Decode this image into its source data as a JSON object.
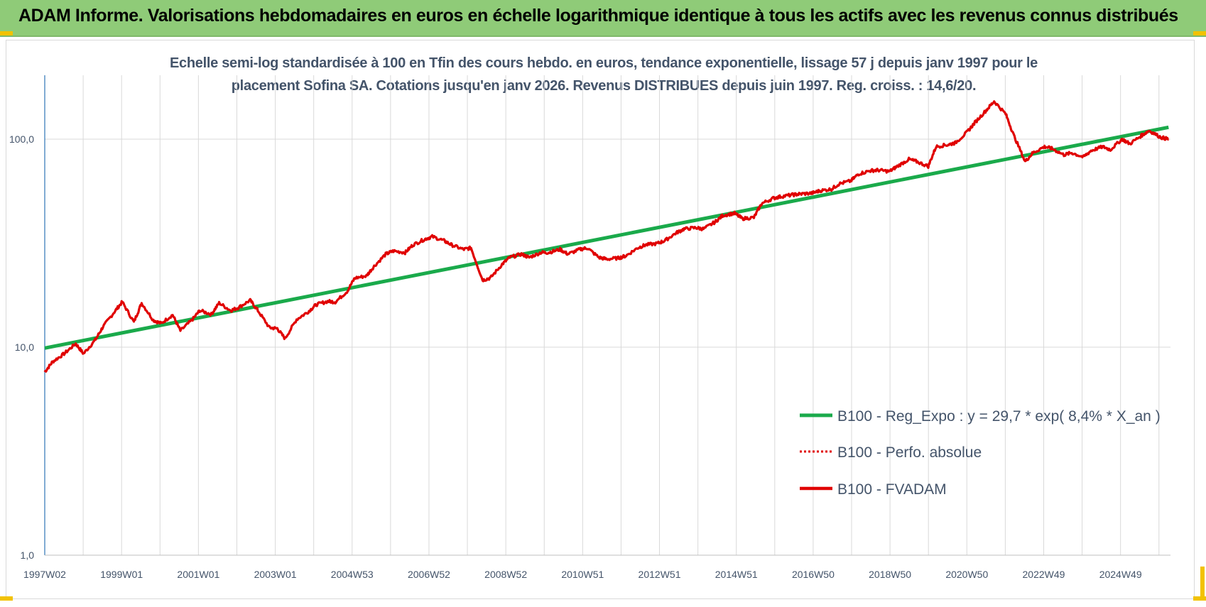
{
  "header": {
    "title": "ADAM Informe. Valorisations hebdomadaires en euros en échelle logarithmique identique à tous les actifs avec les revenus connus distribués"
  },
  "chart_data": {
    "type": "line",
    "title_line1": "Echelle semi-log standardisée à 100 en Tfin des cours hebdo. en euros, tendance exponentielle, lissage 57 j depuis janv 1997 pour le",
    "title_line2": "placement Sofina SA. Cotations jusqu'en janv 2026. Revenus DISTRIBUES depuis juin 1997. Reg. croiss. : 14,6/20.",
    "y_scale": "log",
    "ylim": [
      1,
      180
    ],
    "y_ticks": [
      {
        "value": 1,
        "label": "1,0"
      },
      {
        "value": 10,
        "label": "10,0"
      },
      {
        "value": 100,
        "label": "100,0"
      }
    ],
    "x_ticks": [
      "1997W02",
      "1999W01",
      "2001W01",
      "2003W01",
      "2004W53",
      "2006W52",
      "2008W52",
      "2010W51",
      "2012W51",
      "2014W51",
      "2016W50",
      "2018W50",
      "2020W50",
      "2022W49",
      "2024W49"
    ],
    "x_range": [
      1997.0,
      2026.05
    ],
    "grid": true,
    "legend_position": "bottom-right",
    "colors": {
      "trend": "#1aaa4b",
      "perf": "#e00000",
      "fvadam": "#e00000",
      "grid": "#d9d9d9",
      "axis": "#2e75b6"
    },
    "series": [
      {
        "name": "B100 - Reg_Expo : y = 29,7 * exp( 8,4% *  X_an )",
        "style": "trend",
        "x": [
          1997.0,
          2026.0
        ],
        "y": [
          9.9,
          114
        ]
      },
      {
        "name": "B100 - Perfo. absolue",
        "style": "dotted",
        "x": [],
        "y": []
      },
      {
        "name": "B100 - FVADAM",
        "style": "solid",
        "x": [
          1997.0,
          1997.2,
          1997.5,
          1997.8,
          1998.0,
          1998.3,
          1998.5,
          1998.8,
          1999.0,
          1999.3,
          1999.5,
          1999.8,
          2000.0,
          2000.3,
          2000.5,
          2000.8,
          2001.0,
          2001.3,
          2001.5,
          2001.8,
          2002.0,
          2002.3,
          2002.5,
          2002.8,
          2003.0,
          2003.2,
          2003.5,
          2003.8,
          2004.0,
          2004.3,
          2004.5,
          2004.8,
          2005.0,
          2005.3,
          2005.5,
          2005.8,
          2006.0,
          2006.3,
          2006.5,
          2006.8,
          2007.0,
          2007.3,
          2007.5,
          2007.8,
          2008.0,
          2008.3,
          2008.5,
          2008.8,
          2009.0,
          2009.3,
          2009.5,
          2009.8,
          2010.0,
          2010.3,
          2010.5,
          2010.8,
          2011.0,
          2011.3,
          2011.5,
          2011.8,
          2012.0,
          2012.3,
          2012.5,
          2012.8,
          2013.0,
          2013.3,
          2013.5,
          2013.8,
          2014.0,
          2014.3,
          2014.5,
          2014.8,
          2015.0,
          2015.3,
          2015.5,
          2015.8,
          2016.0,
          2016.3,
          2016.5,
          2016.8,
          2017.0,
          2017.3,
          2017.5,
          2017.8,
          2018.0,
          2018.3,
          2018.5,
          2018.8,
          2019.0,
          2019.3,
          2019.5,
          2019.8,
          2020.0,
          2020.3,
          2020.5,
          2020.8,
          2021.0,
          2021.3,
          2021.5,
          2021.8,
          2022.0,
          2022.3,
          2022.5,
          2022.8,
          2023.0,
          2023.3,
          2023.5,
          2023.8,
          2024.0,
          2024.3,
          2024.5,
          2024.8,
          2025.0,
          2025.3,
          2025.5,
          2025.8,
          2026.0
        ],
        "y": [
          7.6,
          8.5,
          9.3,
          10.4,
          9.3,
          10.8,
          12.5,
          14.8,
          16.5,
          13.2,
          16.3,
          13.5,
          13.0,
          14.3,
          12.0,
          13.5,
          15.0,
          14.4,
          16.3,
          15.0,
          15.5,
          16.8,
          15.0,
          12.4,
          12.3,
          11.0,
          13.6,
          14.8,
          16.0,
          16.6,
          16.5,
          18.5,
          21.5,
          22.0,
          24.5,
          28.0,
          29.0,
          28.5,
          31.0,
          33.0,
          34.0,
          32.5,
          31.0,
          29.5,
          30.0,
          21.0,
          21.5,
          25.0,
          27.0,
          28.0,
          27.0,
          28.5,
          28.5,
          29.5,
          28.0,
          29.5,
          30.0,
          27.0,
          26.5,
          26.8,
          27.5,
          30.0,
          31.0,
          31.5,
          32.5,
          35.5,
          37.0,
          37.5,
          37.0,
          40.0,
          43.0,
          44.0,
          41.5,
          42.0,
          49.0,
          52.0,
          53.0,
          54.0,
          54.5,
          55.0,
          56.5,
          57.5,
          61.0,
          63.0,
          68.0,
          70.5,
          71.0,
          70.0,
          74.0,
          80.0,
          78.0,
          74.0,
          92.0,
          94.0,
          96.0,
          108.0,
          120.0,
          138.0,
          152.0,
          132.0,
          105.0,
          78.0,
          86.0,
          92.0,
          90.0,
          84.0,
          86.0,
          82.0,
          88.0,
          92.0,
          89.0,
          100.0,
          95.0,
          104.0,
          110.0,
          102.0,
          100.0
        ]
      }
    ]
  }
}
